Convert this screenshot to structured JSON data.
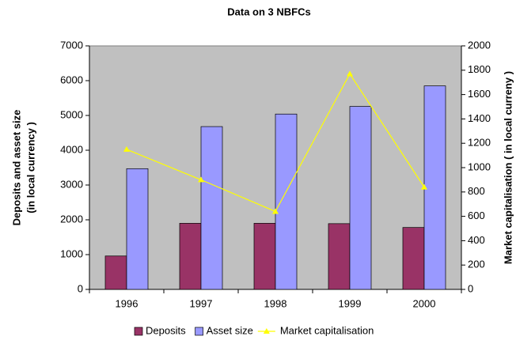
{
  "chart_data": {
    "type": "bar-line",
    "title": "Data on 3 NBFCs",
    "y_label": [
      "Deposits and asset size",
      "(in local currency )"
    ],
    "y2_label": "Market capitalisation ( in local curreny )",
    "categories": [
      "1996",
      "1997",
      "1998",
      "1999",
      "2000"
    ],
    "series": [
      {
        "name": "Deposits",
        "color": "#993366",
        "kind": "bar",
        "values": [
          960,
          1900,
          1900,
          1890,
          1780
        ]
      },
      {
        "name": "Asset size",
        "color": "#9999ff",
        "kind": "bar",
        "values": [
          3470,
          4680,
          5040,
          5260,
          5850
        ]
      },
      {
        "name": "Market capitalisation",
        "color": "#ffff00",
        "kind": "line",
        "axis": "y2",
        "values": [
          1150,
          900,
          640,
          1770,
          840
        ]
      }
    ],
    "ylim": [
      0,
      7000
    ],
    "yticks": [
      0,
      1000,
      2000,
      3000,
      4000,
      5000,
      6000,
      7000
    ],
    "y2lim": [
      0,
      2000
    ],
    "y2ticks": [
      0,
      200,
      400,
      600,
      800,
      1000,
      1200,
      1400,
      1600,
      1800,
      2000
    ],
    "plot_background": "#c0c0c0",
    "legend": "bottom"
  }
}
